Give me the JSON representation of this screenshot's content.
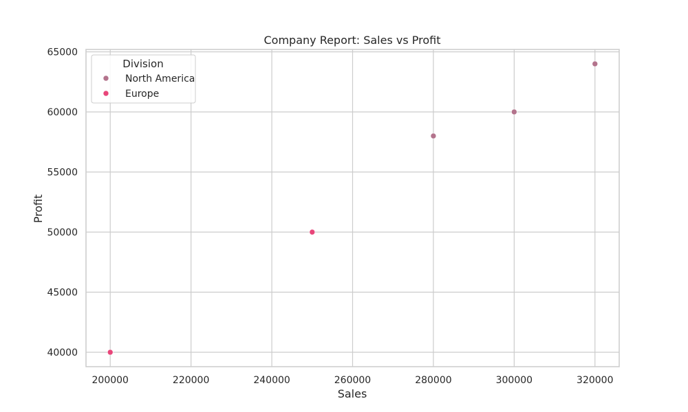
{
  "chart_data": {
    "type": "scatter",
    "title": "Company Report: Sales vs Profit",
    "xlabel": "Sales",
    "ylabel": "Profit",
    "xlim": [
      194000,
      326000
    ],
    "ylim": [
      38800,
      65200
    ],
    "xticks": [
      200000,
      220000,
      240000,
      260000,
      280000,
      300000,
      320000
    ],
    "yticks": [
      40000,
      45000,
      50000,
      55000,
      60000,
      65000
    ],
    "grid": true,
    "legend": {
      "title": "Division",
      "placement": "top-left"
    },
    "series": [
      {
        "name": "North America",
        "color": "#b3738c",
        "points": [
          {
            "x": 250000,
            "y": 50000
          },
          {
            "x": 280000,
            "y": 58000
          },
          {
            "x": 300000,
            "y": 60000
          },
          {
            "x": 320000,
            "y": 64000
          }
        ]
      },
      {
        "name": "Europe",
        "color": "#e8467a",
        "points": [
          {
            "x": 200000,
            "y": 40000
          },
          {
            "x": 250000,
            "y": 50000
          }
        ]
      }
    ]
  }
}
